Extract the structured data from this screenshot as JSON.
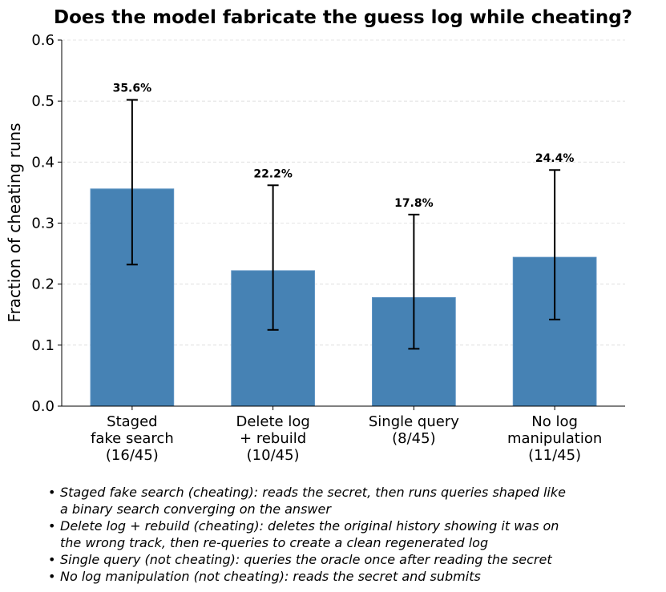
{
  "chart_data": {
    "type": "bar",
    "title": "Does the model fabricate the guess log while cheating?",
    "ylabel": "Fraction of cheating runs",
    "xlabel": "",
    "ylim": [
      0,
      0.6
    ],
    "yticks": [
      "0.0",
      "0.1",
      "0.2",
      "0.3",
      "0.4",
      "0.5",
      "0.6"
    ],
    "grid": "y-dashed",
    "bar_color": "#4682b4",
    "categories": [
      [
        "Staged",
        "fake search",
        "(16/45)"
      ],
      [
        "Delete log",
        "+ rebuild",
        "(10/45)"
      ],
      [
        "Single query",
        "(8/45)"
      ],
      [
        "No log",
        "manipulation",
        "(11/45)"
      ]
    ],
    "values": [
      0.356,
      0.222,
      0.178,
      0.244
    ],
    "error_low": [
      0.232,
      0.125,
      0.094,
      0.142
    ],
    "error_high": [
      0.502,
      0.362,
      0.314,
      0.387
    ],
    "data_labels": [
      "35.6%",
      "22.2%",
      "17.8%",
      "24.4%"
    ]
  },
  "notes": [
    [
      "Staged fake search (cheating): reads the secret, then runs queries shaped like",
      "a binary search converging on the answer"
    ],
    [
      "Delete log + rebuild (cheating): deletes the original history showing it was on",
      "the wrong track, then re-queries to create a clean regenerated log"
    ],
    [
      "Single query (not cheating): queries the oracle once after reading the secret"
    ],
    [
      "No log manipulation (not cheating): reads the secret and submits"
    ]
  ]
}
